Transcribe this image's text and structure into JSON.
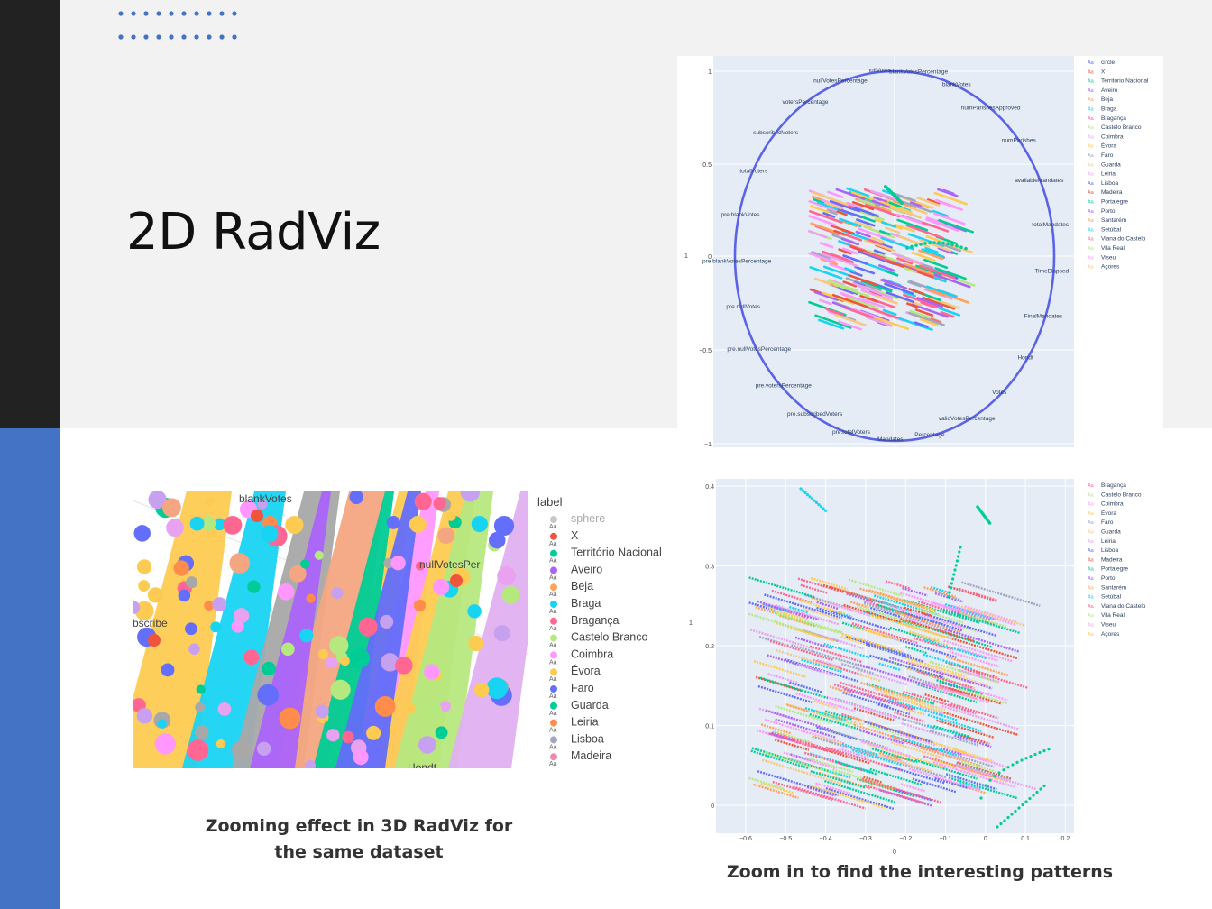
{
  "slide": {
    "title": "2D RadViz",
    "caption_left_line1": "Zooming  effect in 3D RadViz for",
    "caption_left_line2": "the same dataset",
    "caption_right": "Zoom in to find the interesting patterns",
    "accent_blue": "#4472c4",
    "dark_bar": "#222222"
  },
  "plot1": {
    "y_ticks": [
      "1",
      "0.5",
      "0",
      "−0.5",
      "−1"
    ],
    "y_axis_label": "1",
    "anchors": [
      "nullVotesPercentage",
      "nullVotes",
      "blankVotesPercentage",
      "blankVotes",
      "numParishesApproved",
      "numParishes",
      "availableMandates",
      "totalMandates",
      "TimeElapsed",
      "FinalMandates",
      "Hondt",
      "Votes",
      "validVotesPercentage",
      "Percentage",
      "Mandates",
      "pre.totalVoters",
      "pre.subscribedVoters",
      "pre.votersPercentage",
      "pre.nullVotesPercentage",
      "pre.nullVotes",
      "pre.blankVotesPercentage",
      "pre.blankVotes",
      "totalVoters",
      "subscribedVoters",
      "votersPercentage"
    ],
    "legend": [
      "circle",
      "X",
      "Território Nacional",
      "Aveiro",
      "Beja",
      "Braga",
      "Bragança",
      "Castelo Branco",
      "Coimbra",
      "Évora",
      "Faro",
      "Guarda",
      "Leiria",
      "Lisboa",
      "Madeira",
      "Portalegre",
      "Porto",
      "Santarém",
      "Setúbal",
      "Viana do Castelo",
      "Vila Real",
      "Viseu",
      "Açores"
    ]
  },
  "plot2": {
    "label_title": "label",
    "legend": [
      {
        "name": "sphere",
        "color": "#c8c8c8"
      },
      {
        "name": "X",
        "color": "#ef553b"
      },
      {
        "name": "Território Nacional",
        "color": "#00cc96"
      },
      {
        "name": "Aveiro",
        "color": "#ab63fa"
      },
      {
        "name": "Beja",
        "color": "#ffa15a"
      },
      {
        "name": "Braga",
        "color": "#19d3f3"
      },
      {
        "name": "Bragança",
        "color": "#ff6692"
      },
      {
        "name": "Castelo Branco",
        "color": "#b6e880"
      },
      {
        "name": "Coimbra",
        "color": "#ff97ff"
      },
      {
        "name": "Évora",
        "color": "#fecb52"
      },
      {
        "name": "Faro",
        "color": "#636efa"
      },
      {
        "name": "Guarda",
        "color": "#00cc96"
      },
      {
        "name": "Leiria",
        "color": "#ff8c4a"
      },
      {
        "name": "Lisboa",
        "color": "#a0a8c0"
      },
      {
        "name": "Madeira",
        "color": "#ef88b0"
      }
    ],
    "anchors": [
      "blankVotes",
      "nullVotesPer",
      "bscribe",
      "Hondt"
    ]
  },
  "plot3": {
    "y_ticks": [
      "0.4",
      "0.3",
      "0.2",
      "0.1",
      "0"
    ],
    "x_ticks": [
      "−0.6",
      "−0.5",
      "−0.4",
      "−0.3",
      "−0.2",
      "−0.1",
      "0",
      "0.1",
      "0.2"
    ],
    "x_axis_label": "0",
    "y_axis_label": "1",
    "legend": [
      "Bragança",
      "Castelo Branco",
      "Coimbra",
      "Évora",
      "Faro",
      "Guarda",
      "Leiria",
      "Lisboa",
      "Madeira",
      "Portalegre",
      "Porto",
      "Santarém",
      "Setúbal",
      "Viana do Castelo",
      "Vila Real",
      "Viseu",
      "Açores"
    ]
  }
}
